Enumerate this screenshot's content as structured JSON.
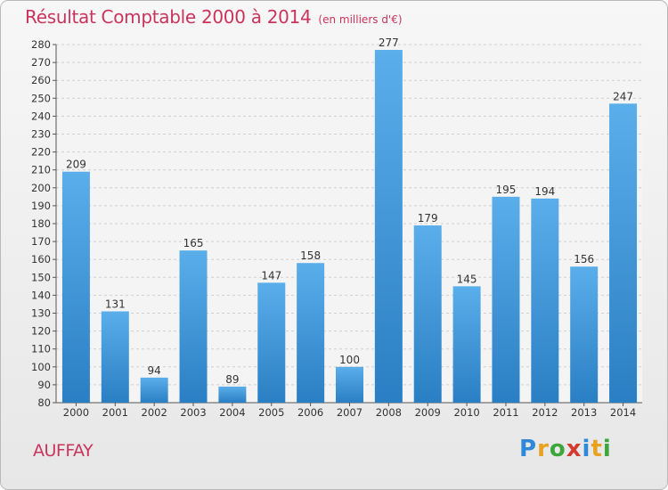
{
  "title": "Résultat Comptable 2000 à 2014",
  "subtitle": "(en milliers d'€)",
  "location": "AUFFAY",
  "logo": {
    "letters": [
      "P",
      "r",
      "o",
      "x",
      "i",
      "t",
      "i"
    ],
    "colors": [
      "#2e8ad8",
      "#e8a21f",
      "#3da63a",
      "#d43a2f",
      "#2e8ad8",
      "#e8a21f",
      "#3da63a"
    ]
  },
  "colors": {
    "bar_top": "#5aaeea",
    "bar_bottom": "#2a7fc4",
    "title": "#c9345d",
    "grid": "#cfcfcf"
  },
  "chart_data": {
    "type": "bar",
    "title": "Résultat Comptable 2000 à 2014",
    "xlabel": "",
    "ylabel": "",
    "categories": [
      "2000",
      "2001",
      "2002",
      "2003",
      "2004",
      "2005",
      "2006",
      "2007",
      "2008",
      "2009",
      "2010",
      "2011",
      "2012",
      "2013",
      "2014"
    ],
    "values": [
      209,
      131,
      94,
      165,
      89,
      147,
      158,
      100,
      277,
      179,
      145,
      195,
      194,
      156,
      247
    ],
    "ylim": [
      80,
      280
    ],
    "yticks": [
      80,
      90,
      100,
      110,
      120,
      130,
      140,
      150,
      160,
      170,
      180,
      190,
      200,
      210,
      220,
      230,
      240,
      250,
      260,
      270,
      280
    ],
    "grid": true
  }
}
